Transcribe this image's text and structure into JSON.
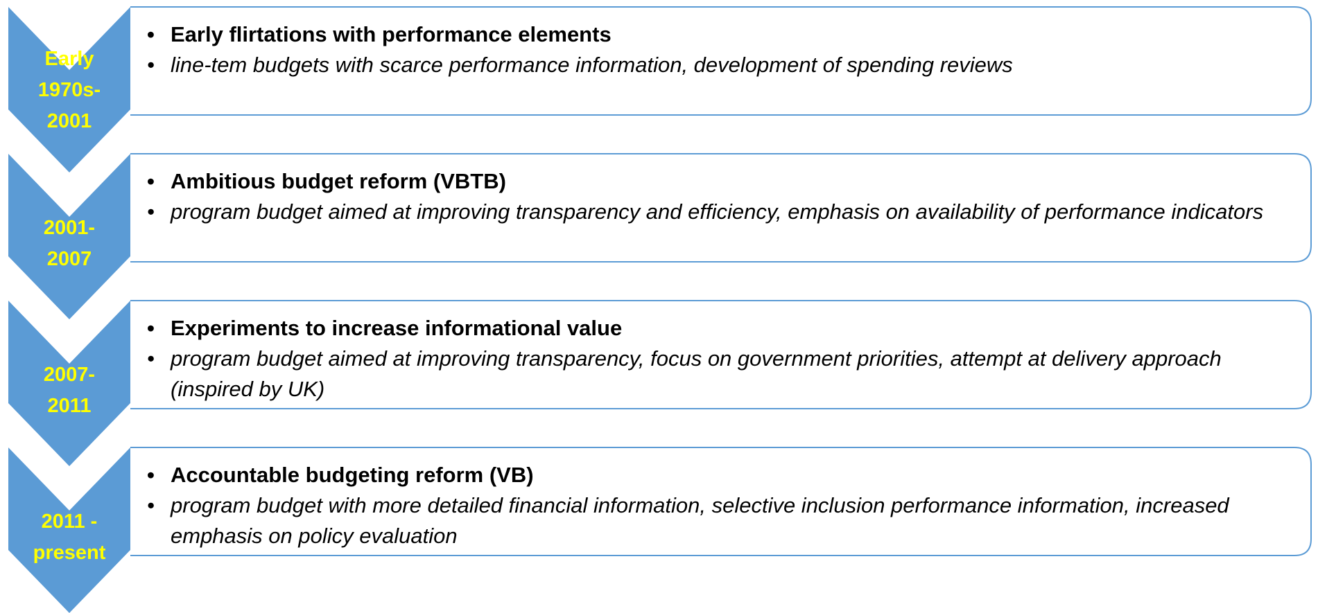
{
  "rows": [
    {
      "period": [
        "Early",
        "1970s-",
        "2001"
      ],
      "heading": "Early flirtations with performance elements",
      "detail": "line-tem budgets with scarce performance information, development of spending reviews"
    },
    {
      "period": [
        "2001-",
        "2007"
      ],
      "heading": "Ambitious budget reform (VBTB)",
      "detail": "program budget aimed at improving transparency and efficiency, emphasis on availability of performance indicators"
    },
    {
      "period": [
        "2007-",
        "2011"
      ],
      "heading": "Experiments to increase informational value",
      "detail": "program budget aimed at improving transparency, focus on government priorities, attempt at delivery approach (inspired by UK)"
    },
    {
      "period": [
        "2011 -",
        "present"
      ],
      "heading": "Accountable budgeting reform (VB)",
      "detail": "program budget with more detailed financial information, selective inclusion performance information, increased emphasis on policy evaluation"
    }
  ]
}
